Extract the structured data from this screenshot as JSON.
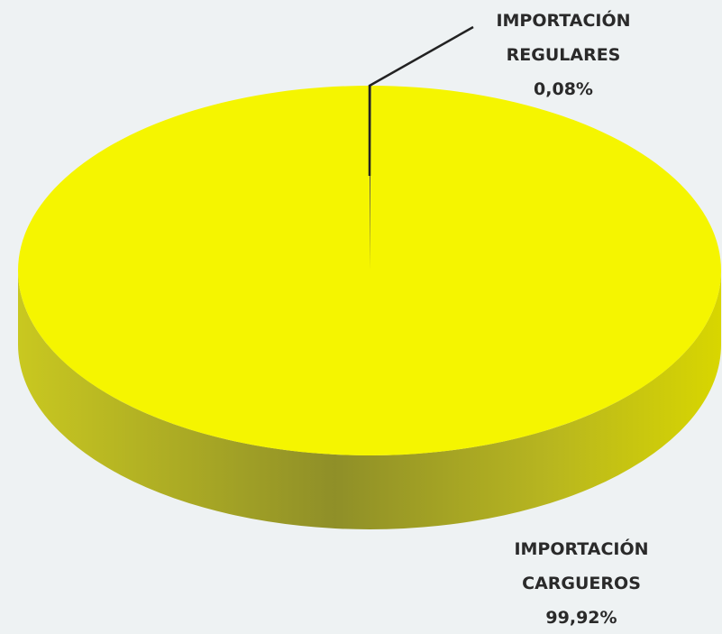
{
  "chart_data": {
    "type": "pie",
    "categories": [
      "IMPORTACIÓN REGULARES",
      "IMPORTACIÓN CARGUEROS"
    ],
    "values": [
      0.08,
      99.92
    ],
    "value_labels": [
      "0,08%",
      "99,92%"
    ],
    "colors": [
      "#f0f000",
      "#f5f500"
    ]
  }
}
